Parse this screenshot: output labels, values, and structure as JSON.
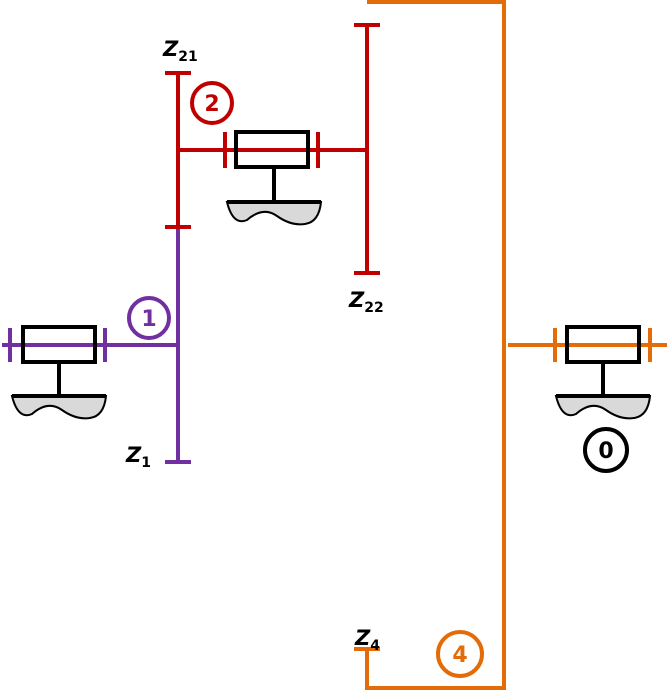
{
  "colors": {
    "part1": "#7030a0",
    "part2": "#c00000",
    "part4": "#e36c09",
    "frame": "#000000",
    "ground_fill": "#d9d9d9"
  },
  "labels": {
    "z1": {
      "main": "Z",
      "sub": "1"
    },
    "z21": {
      "main": "Z",
      "sub": "21"
    },
    "z22": {
      "main": "Z",
      "sub": "22"
    },
    "z4": {
      "main": "Z",
      "sub": "4"
    }
  },
  "parts": {
    "part1": "1",
    "part2": "2",
    "part4": "4",
    "frame": "0"
  }
}
